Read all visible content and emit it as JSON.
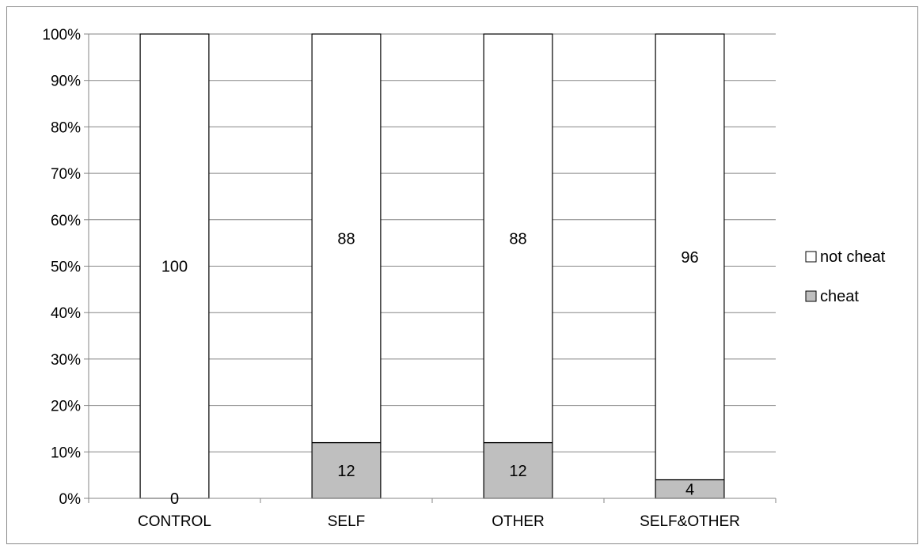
{
  "chart_data": {
    "type": "bar",
    "stacked": true,
    "percent_stacked": true,
    "categories": [
      "CONTROL",
      "SELF",
      "OTHER",
      "SELF&OTHER"
    ],
    "series": [
      {
        "name": "cheat",
        "values": [
          0,
          12,
          12,
          4
        ],
        "color": "#bfbfbf"
      },
      {
        "name": "not cheat",
        "values": [
          100,
          88,
          88,
          96
        ],
        "color": "#ffffff"
      }
    ],
    "ylim": [
      0,
      100
    ],
    "yticks": [
      "0%",
      "10%",
      "20%",
      "30%",
      "40%",
      "50%",
      "60%",
      "70%",
      "80%",
      "90%",
      "100%"
    ],
    "grid": true,
    "legend_placement": "right",
    "legend_order": [
      "not cheat",
      "cheat"
    ],
    "title": "",
    "xlabel": "",
    "ylabel": ""
  }
}
